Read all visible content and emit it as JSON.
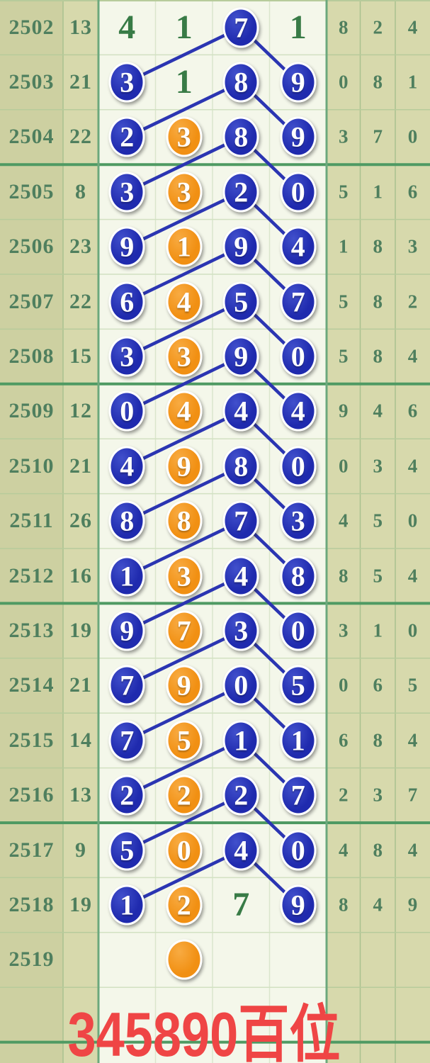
{
  "caption": "345890百位",
  "colors": {
    "blue_ball": "#1f2aae",
    "blue_ball_light": "#4150cc",
    "orange_ball": "#f19013",
    "orange_ball_light": "#f8ab42",
    "trend_line": "#2b35b2",
    "text_green_dark": "#387b46",
    "text_green_gray": "#4f7f5e",
    "bg_khaki": "#d7d9ac",
    "bg_khaki_dark": "#cdd0a1",
    "bg_chart": "#f4f7ea",
    "grid_thin_khaki": "#a9c18f",
    "grid_thin_chart": "#d9e6cc",
    "grid_row_thin": "#b7cb9b",
    "grid_row_chart": "#d2e1c2",
    "grid_strong": "#4f9a63",
    "chart_border": "#6ca87c",
    "caption_red": "#ef4545"
  },
  "chart_data": {
    "type": "table",
    "title": "345890百位",
    "columns": [
      "period",
      "sum",
      "pos1",
      "pos2",
      "pos3",
      "pos4",
      "right1",
      "right2",
      "right3"
    ],
    "rows": [
      {
        "period": "2502",
        "sum": "13",
        "cells": [
          [
            "t",
            "4"
          ],
          [
            "t",
            "1"
          ],
          [
            "b",
            "7"
          ],
          [
            "t",
            "1"
          ]
        ],
        "right": [
          "8",
          "2",
          "4"
        ]
      },
      {
        "period": "2503",
        "sum": "21",
        "cells": [
          [
            "b",
            "3"
          ],
          [
            "t",
            "1"
          ],
          [
            "b",
            "8"
          ],
          [
            "b",
            "9"
          ]
        ],
        "right": [
          "0",
          "8",
          "1"
        ]
      },
      {
        "period": "2504",
        "sum": "22",
        "cells": [
          [
            "b",
            "2"
          ],
          [
            "o",
            "3"
          ],
          [
            "b",
            "8"
          ],
          [
            "b",
            "9"
          ]
        ],
        "right": [
          "3",
          "7",
          "0"
        ]
      },
      {
        "period": "2505",
        "sum": "8",
        "cells": [
          [
            "b",
            "3"
          ],
          [
            "o",
            "3"
          ],
          [
            "b",
            "2"
          ],
          [
            "b",
            "0"
          ]
        ],
        "right": [
          "5",
          "1",
          "6"
        ]
      },
      {
        "period": "2506",
        "sum": "23",
        "cells": [
          [
            "b",
            "9"
          ],
          [
            "o",
            "1"
          ],
          [
            "b",
            "9"
          ],
          [
            "b",
            "4"
          ]
        ],
        "right": [
          "1",
          "8",
          "3"
        ]
      },
      {
        "period": "2507",
        "sum": "22",
        "cells": [
          [
            "b",
            "6"
          ],
          [
            "o",
            "4"
          ],
          [
            "b",
            "5"
          ],
          [
            "b",
            "7"
          ]
        ],
        "right": [
          "5",
          "8",
          "2"
        ]
      },
      {
        "period": "2508",
        "sum": "15",
        "cells": [
          [
            "b",
            "3"
          ],
          [
            "o",
            "3"
          ],
          [
            "b",
            "9"
          ],
          [
            "b",
            "0"
          ]
        ],
        "right": [
          "5",
          "8",
          "4"
        ]
      },
      {
        "period": "2509",
        "sum": "12",
        "cells": [
          [
            "b",
            "0"
          ],
          [
            "o",
            "4"
          ],
          [
            "b",
            "4"
          ],
          [
            "b",
            "4"
          ]
        ],
        "right": [
          "9",
          "4",
          "6"
        ]
      },
      {
        "period": "2510",
        "sum": "21",
        "cells": [
          [
            "b",
            "4"
          ],
          [
            "o",
            "9"
          ],
          [
            "b",
            "8"
          ],
          [
            "b",
            "0"
          ]
        ],
        "right": [
          "0",
          "3",
          "4"
        ]
      },
      {
        "period": "2511",
        "sum": "26",
        "cells": [
          [
            "b",
            "8"
          ],
          [
            "o",
            "8"
          ],
          [
            "b",
            "7"
          ],
          [
            "b",
            "3"
          ]
        ],
        "right": [
          "4",
          "5",
          "0"
        ]
      },
      {
        "period": "2512",
        "sum": "16",
        "cells": [
          [
            "b",
            "1"
          ],
          [
            "o",
            "3"
          ],
          [
            "b",
            "4"
          ],
          [
            "b",
            "8"
          ]
        ],
        "right": [
          "8",
          "5",
          "4"
        ]
      },
      {
        "period": "2513",
        "sum": "19",
        "cells": [
          [
            "b",
            "9"
          ],
          [
            "o",
            "7"
          ],
          [
            "b",
            "3"
          ],
          [
            "b",
            "0"
          ]
        ],
        "right": [
          "3",
          "1",
          "0"
        ]
      },
      {
        "period": "2514",
        "sum": "21",
        "cells": [
          [
            "b",
            "7"
          ],
          [
            "o",
            "9"
          ],
          [
            "b",
            "0"
          ],
          [
            "b",
            "5"
          ]
        ],
        "right": [
          "0",
          "6",
          "5"
        ]
      },
      {
        "period": "2515",
        "sum": "14",
        "cells": [
          [
            "b",
            "7"
          ],
          [
            "o",
            "5"
          ],
          [
            "b",
            "1"
          ],
          [
            "b",
            "1"
          ]
        ],
        "right": [
          "6",
          "8",
          "4"
        ]
      },
      {
        "period": "2516",
        "sum": "13",
        "cells": [
          [
            "b",
            "2"
          ],
          [
            "o",
            "2"
          ],
          [
            "b",
            "2"
          ],
          [
            "b",
            "7"
          ]
        ],
        "right": [
          "2",
          "3",
          "7"
        ]
      },
      {
        "period": "2517",
        "sum": "9",
        "cells": [
          [
            "b",
            "5"
          ],
          [
            "o",
            "0"
          ],
          [
            "b",
            "4"
          ],
          [
            "b",
            "0"
          ]
        ],
        "right": [
          "4",
          "8",
          "4"
        ]
      },
      {
        "period": "2518",
        "sum": "19",
        "cells": [
          [
            "b",
            "1"
          ],
          [
            "o",
            "2"
          ],
          [
            "t",
            "7"
          ],
          [
            "b",
            "9"
          ]
        ],
        "right": [
          "8",
          "4",
          "9"
        ]
      },
      {
        "period": "2519",
        "sum": "",
        "cells": [
          [
            "e",
            ""
          ],
          [
            "o",
            ""
          ],
          [
            "e",
            ""
          ],
          [
            "e",
            ""
          ]
        ],
        "right": [
          "",
          "",
          ""
        ]
      }
    ],
    "trend_lines": [
      [
        0,
        2,
        1,
        0
      ],
      [
        0,
        2,
        1,
        3
      ],
      [
        1,
        2,
        2,
        0
      ],
      [
        1,
        2,
        2,
        3
      ],
      [
        2,
        2,
        3,
        0
      ],
      [
        2,
        2,
        3,
        3
      ],
      [
        3,
        2,
        4,
        0
      ],
      [
        3,
        2,
        4,
        3
      ],
      [
        4,
        2,
        5,
        0
      ],
      [
        4,
        2,
        5,
        3
      ],
      [
        5,
        2,
        6,
        0
      ],
      [
        5,
        2,
        6,
        3
      ],
      [
        6,
        2,
        7,
        0
      ],
      [
        6,
        2,
        7,
        3
      ],
      [
        7,
        2,
        8,
        0
      ],
      [
        7,
        2,
        8,
        3
      ],
      [
        8,
        2,
        9,
        0
      ],
      [
        8,
        2,
        9,
        3
      ],
      [
        9,
        2,
        10,
        0
      ],
      [
        9,
        2,
        10,
        3
      ],
      [
        10,
        2,
        11,
        0
      ],
      [
        10,
        2,
        11,
        3
      ],
      [
        11,
        2,
        12,
        0
      ],
      [
        11,
        2,
        12,
        3
      ],
      [
        12,
        2,
        13,
        0
      ],
      [
        12,
        2,
        13,
        3
      ],
      [
        13,
        2,
        14,
        0
      ],
      [
        13,
        2,
        14,
        3
      ],
      [
        14,
        2,
        15,
        0
      ],
      [
        14,
        2,
        15,
        3
      ],
      [
        15,
        2,
        16,
        0
      ],
      [
        15,
        2,
        16,
        3
      ]
    ],
    "group_separator_after_row": [
      2,
      6,
      10,
      14,
      18
    ]
  }
}
